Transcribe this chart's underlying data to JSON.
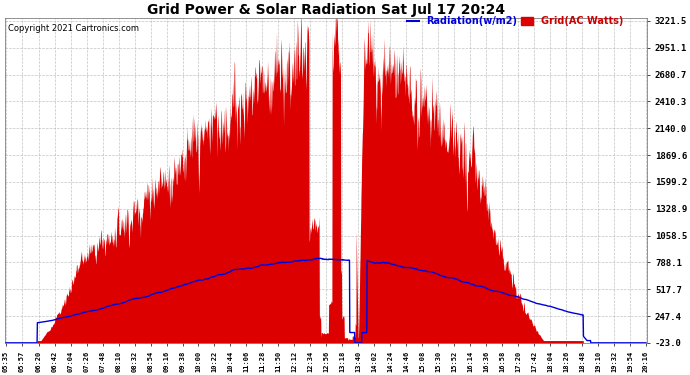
{
  "title": "Grid Power & Solar Radiation Sat Jul 17 20:24",
  "copyright": "Copyright 2021 Cartronics.com",
  "legend_radiation": "Radiation(w/m2)",
  "legend_grid": "Grid(AC Watts)",
  "yticks": [
    3221.5,
    2951.1,
    2680.7,
    2410.3,
    2140.0,
    1869.6,
    1599.2,
    1328.9,
    1058.5,
    788.1,
    517.7,
    247.4,
    -23.0
  ],
  "ymin": -23.0,
  "ymax": 3221.5,
  "background_color": "#ffffff",
  "grid_color": "#aaaaaa",
  "fill_color": "#dd0000",
  "line_color_radiation": "#0000dd",
  "xtick_labels": [
    "05:35",
    "05:57",
    "06:20",
    "06:42",
    "07:04",
    "07:26",
    "07:48",
    "08:10",
    "08:32",
    "08:54",
    "09:16",
    "09:38",
    "10:00",
    "10:22",
    "10:44",
    "11:06",
    "11:28",
    "11:50",
    "12:12",
    "12:34",
    "12:56",
    "13:18",
    "13:40",
    "14:02",
    "14:24",
    "14:46",
    "15:08",
    "15:30",
    "15:52",
    "16:14",
    "16:36",
    "16:58",
    "17:20",
    "17:42",
    "18:04",
    "18:26",
    "18:48",
    "19:10",
    "19:32",
    "19:54",
    "20:16"
  ]
}
